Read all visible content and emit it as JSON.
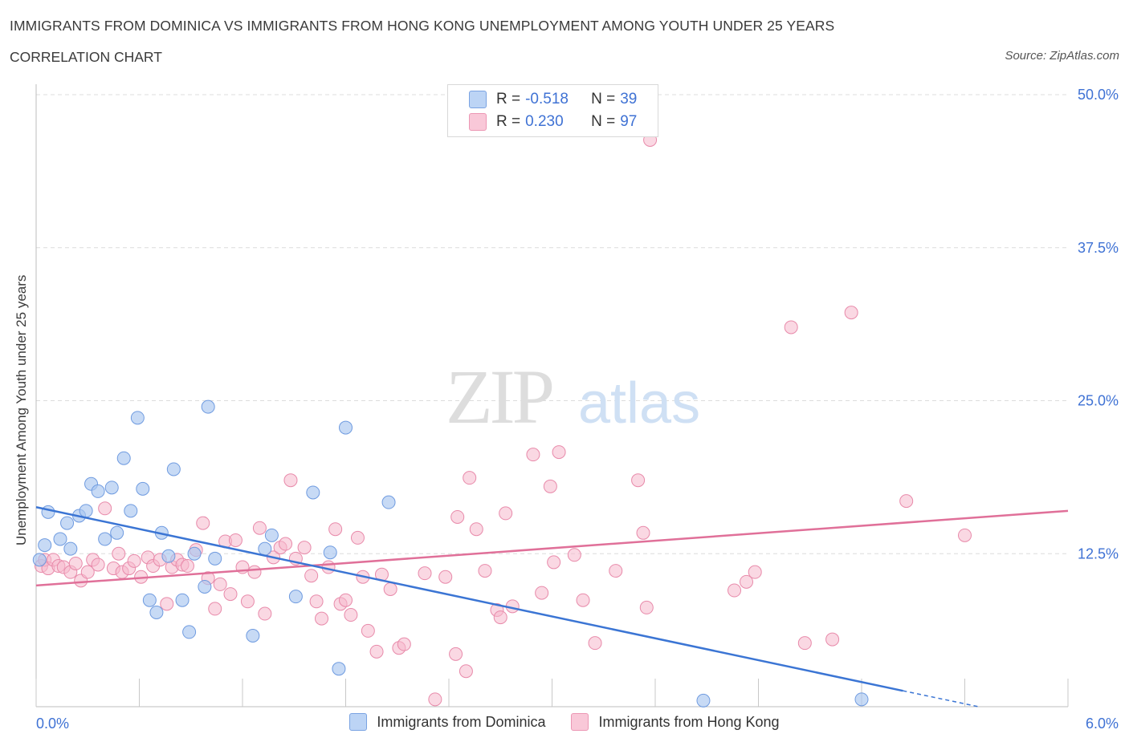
{
  "header": {
    "title": "IMMIGRANTS FROM DOMINICA VS IMMIGRANTS FROM HONG KONG UNEMPLOYMENT AMONG YOUTH UNDER 25 YEARS",
    "subtitle": "CORRELATION CHART",
    "source": "Source: ZipAtlas.com"
  },
  "legend": {
    "rows": [
      {
        "r_label": "R =",
        "r_value": "-0.518",
        "n_label": "N =",
        "n_value": "39"
      },
      {
        "r_label": "R =",
        "r_value": "0.230",
        "n_label": "N =",
        "n_value": "97"
      }
    ]
  },
  "bottom_legend": {
    "dominica": "Immigrants from Dominica",
    "hongkong": "Immigrants from Hong Kong"
  },
  "colors": {
    "dominica_fill": "#a9c6f0",
    "dominica_stroke": "#6f9be0",
    "dominica_line": "#3b75d4",
    "hongkong_fill": "#f5b8cc",
    "hongkong_stroke": "#e88aaa",
    "hongkong_line": "#e07099",
    "axis_label": "#3f72d4",
    "grid": "#dcdcdc"
  },
  "chart_data": {
    "type": "scatter",
    "title": "IMMIGRANTS FROM DOMINICA VS IMMIGRANTS FROM HONG KONG UNEMPLOYMENT AMONG YOUTH UNDER 25 YEARS",
    "xlabel": "",
    "ylabel": "Unemployment Among Youth under 25 years",
    "xlim": [
      0,
      6
    ],
    "ylim": [
      0,
      50
    ],
    "x_tick_labels": [
      "0.0%",
      "6.0%"
    ],
    "y_ticks": [
      12.5,
      25,
      37.5,
      50
    ],
    "y_tick_labels": [
      "12.5%",
      "25.0%",
      "37.5%",
      "50.0%"
    ],
    "grid": true,
    "legend_position": "top-center",
    "watermark": "ZIPatlas",
    "series": [
      {
        "name": "Immigrants from Dominica",
        "points": [
          [
            0.02,
            12.0
          ],
          [
            0.05,
            13.2
          ],
          [
            0.07,
            15.9
          ],
          [
            0.14,
            13.7
          ],
          [
            0.18,
            15.0
          ],
          [
            0.2,
            12.9
          ],
          [
            0.25,
            15.6
          ],
          [
            0.29,
            16.0
          ],
          [
            0.32,
            18.2
          ],
          [
            0.36,
            17.6
          ],
          [
            0.4,
            13.7
          ],
          [
            0.44,
            17.9
          ],
          [
            0.47,
            14.2
          ],
          [
            0.51,
            20.3
          ],
          [
            0.55,
            16.0
          ],
          [
            0.59,
            23.6
          ],
          [
            0.62,
            17.8
          ],
          [
            0.66,
            8.7
          ],
          [
            0.7,
            7.7
          ],
          [
            0.73,
            14.2
          ],
          [
            0.77,
            12.3
          ],
          [
            0.8,
            19.4
          ],
          [
            0.85,
            8.7
          ],
          [
            0.89,
            6.1
          ],
          [
            0.92,
            12.5
          ],
          [
            0.98,
            9.8
          ],
          [
            1.0,
            24.5
          ],
          [
            1.04,
            12.1
          ],
          [
            1.26,
            5.8
          ],
          [
            1.33,
            12.9
          ],
          [
            1.37,
            14.0
          ],
          [
            1.51,
            9.0
          ],
          [
            1.61,
            17.5
          ],
          [
            1.71,
            12.6
          ],
          [
            1.76,
            3.1
          ],
          [
            1.8,
            22.8
          ],
          [
            2.05,
            16.7
          ],
          [
            3.88,
            0.5
          ],
          [
            4.8,
            0.6
          ]
        ]
      },
      {
        "name": "Immigrants from Hong Kong",
        "points": [
          [
            0.03,
            11.5
          ],
          [
            0.05,
            12.0
          ],
          [
            0.07,
            11.3
          ],
          [
            0.1,
            12.0
          ],
          [
            0.13,
            11.5
          ],
          [
            0.16,
            11.4
          ],
          [
            0.2,
            11.0
          ],
          [
            0.23,
            11.7
          ],
          [
            0.26,
            10.3
          ],
          [
            0.3,
            11.0
          ],
          [
            0.33,
            12.0
          ],
          [
            0.36,
            11.6
          ],
          [
            0.4,
            16.2
          ],
          [
            0.45,
            11.3
          ],
          [
            0.48,
            12.5
          ],
          [
            0.5,
            11.0
          ],
          [
            0.54,
            11.3
          ],
          [
            0.57,
            11.9
          ],
          [
            0.61,
            10.6
          ],
          [
            0.65,
            12.2
          ],
          [
            0.68,
            11.5
          ],
          [
            0.72,
            12.0
          ],
          [
            0.76,
            8.4
          ],
          [
            0.79,
            11.4
          ],
          [
            0.82,
            12.0
          ],
          [
            0.85,
            11.6
          ],
          [
            0.88,
            11.5
          ],
          [
            0.93,
            12.8
          ],
          [
            0.97,
            15.0
          ],
          [
            1.0,
            10.5
          ],
          [
            1.04,
            8.0
          ],
          [
            1.07,
            10.0
          ],
          [
            1.1,
            13.5
          ],
          [
            1.13,
            9.2
          ],
          [
            1.16,
            13.6
          ],
          [
            1.2,
            11.4
          ],
          [
            1.23,
            8.6
          ],
          [
            1.27,
            11.0
          ],
          [
            1.3,
            14.6
          ],
          [
            1.33,
            7.6
          ],
          [
            1.38,
            12.2
          ],
          [
            1.42,
            13.0
          ],
          [
            1.45,
            13.3
          ],
          [
            1.48,
            18.5
          ],
          [
            1.51,
            12.1
          ],
          [
            1.56,
            13.0
          ],
          [
            1.6,
            10.7
          ],
          [
            1.63,
            8.6
          ],
          [
            1.66,
            7.2
          ],
          [
            1.7,
            11.4
          ],
          [
            1.74,
            14.5
          ],
          [
            1.77,
            8.4
          ],
          [
            1.8,
            8.7
          ],
          [
            1.83,
            7.5
          ],
          [
            1.87,
            13.8
          ],
          [
            1.9,
            10.6
          ],
          [
            1.93,
            6.2
          ],
          [
            1.98,
            4.5
          ],
          [
            2.01,
            10.8
          ],
          [
            2.06,
            9.6
          ],
          [
            2.11,
            4.8
          ],
          [
            2.14,
            5.1
          ],
          [
            2.26,
            10.9
          ],
          [
            2.32,
            0.6
          ],
          [
            2.38,
            10.6
          ],
          [
            2.44,
            4.3
          ],
          [
            2.45,
            15.5
          ],
          [
            2.5,
            2.9
          ],
          [
            2.52,
            18.7
          ],
          [
            2.56,
            14.5
          ],
          [
            2.61,
            11.1
          ],
          [
            2.68,
            7.9
          ],
          [
            2.7,
            7.3
          ],
          [
            2.73,
            15.8
          ],
          [
            2.77,
            8.2
          ],
          [
            2.89,
            20.6
          ],
          [
            2.94,
            9.3
          ],
          [
            2.99,
            18.0
          ],
          [
            3.01,
            11.8
          ],
          [
            3.04,
            20.8
          ],
          [
            3.13,
            12.4
          ],
          [
            3.18,
            8.7
          ],
          [
            3.25,
            5.2
          ],
          [
            3.37,
            11.1
          ],
          [
            3.5,
            18.5
          ],
          [
            3.53,
            14.2
          ],
          [
            3.55,
            8.1
          ],
          [
            3.57,
            46.3
          ],
          [
            4.06,
            9.5
          ],
          [
            4.13,
            10.2
          ],
          [
            4.18,
            11.0
          ],
          [
            4.39,
            31.0
          ],
          [
            4.47,
            5.2
          ],
          [
            4.63,
            5.5
          ],
          [
            4.74,
            32.2
          ],
          [
            5.06,
            16.8
          ],
          [
            5.4,
            14.0
          ]
        ]
      }
    ],
    "trend_lines": [
      {
        "series": "Immigrants from Dominica",
        "x": [
          0.0,
          5.04
        ],
        "y": [
          16.3,
          1.3
        ],
        "dashed_to": [
          5.48,
          0.0
        ]
      },
      {
        "series": "Immigrants from Hong Kong",
        "x": [
          0.0,
          6.0
        ],
        "y": [
          9.9,
          16.0
        ]
      }
    ]
  }
}
